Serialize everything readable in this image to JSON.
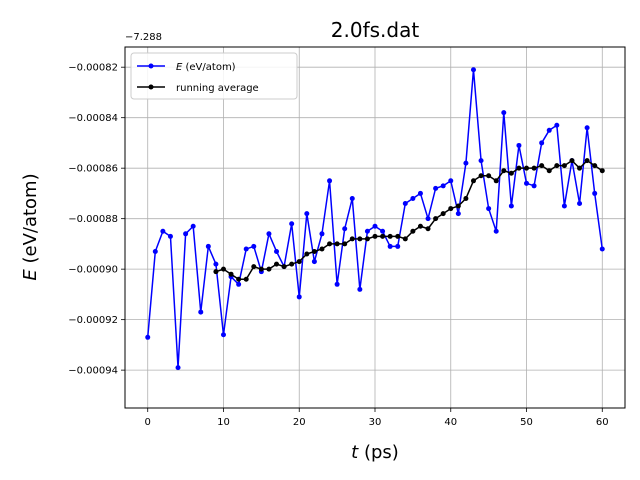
{
  "chart_data": {
    "type": "line",
    "title": "2.0fs.dat",
    "xlabel_var": "t",
    "xlabel_unit": " (ps)",
    "ylabel_var": "E",
    "ylabel_unit": " (eV/atom)",
    "y_offset_label": "−7.288",
    "y_offset": -7.288,
    "xlim": [
      -3,
      63
    ],
    "ylim": [
      -0.000955,
      -0.000812
    ],
    "x_ticks": [
      0,
      10,
      20,
      30,
      40,
      50,
      60
    ],
    "x_tick_labels": [
      "0",
      "10",
      "20",
      "30",
      "40",
      "50",
      "60"
    ],
    "y_ticks": [
      -0.00094,
      -0.00092,
      -0.0009,
      -0.00088,
      -0.00086,
      -0.00084,
      -0.00082
    ],
    "y_tick_labels": [
      "−0.00094",
      "−0.00092",
      "−0.00090",
      "−0.00088",
      "−0.00086",
      "−0.00084",
      "−0.00082"
    ],
    "grid": true,
    "legend_position": "upper-left",
    "series": [
      {
        "name": "E (eV/atom)",
        "legend_var": "E",
        "legend_unit": " (eV/atom)",
        "color": "#0000ff",
        "x": [
          0,
          1,
          2,
          3,
          4,
          5,
          6,
          7,
          8,
          9,
          10,
          11,
          12,
          13,
          14,
          15,
          16,
          17,
          18,
          19,
          20,
          21,
          22,
          23,
          24,
          25,
          26,
          27,
          28,
          29,
          30,
          31,
          32,
          33,
          34,
          35,
          36,
          37,
          38,
          39,
          40,
          41,
          42,
          43,
          44,
          45,
          46,
          47,
          48,
          49,
          50,
          51,
          52,
          53,
          54,
          55,
          56,
          57,
          58,
          59,
          60
        ],
        "y": [
          -0.000927,
          -0.000893,
          -0.000885,
          -0.000887,
          -0.000939,
          -0.000886,
          -0.000883,
          -0.000917,
          -0.000891,
          -0.000898,
          -0.000926,
          -0.000903,
          -0.000906,
          -0.000892,
          -0.000891,
          -0.000901,
          -0.000886,
          -0.000893,
          -0.000899,
          -0.000882,
          -0.000911,
          -0.000878,
          -0.000897,
          -0.000886,
          -0.000865,
          -0.000906,
          -0.000884,
          -0.000872,
          -0.000908,
          -0.000885,
          -0.000883,
          -0.000885,
          -0.000891,
          -0.000891,
          -0.000874,
          -0.000872,
          -0.00087,
          -0.00088,
          -0.000868,
          -0.000867,
          -0.000865,
          -0.000878,
          -0.000858,
          -0.000821,
          -0.000857,
          -0.000876,
          -0.000885,
          -0.000838,
          -0.000875,
          -0.000851,
          -0.000866,
          -0.000867,
          -0.00085,
          -0.000845,
          -0.000843,
          -0.000875,
          -0.000857,
          -0.000874,
          -0.000844,
          -0.00087,
          -0.000892
        ]
      },
      {
        "name": "running average",
        "legend_label": "running average",
        "color": "#000000",
        "x": [
          9,
          10,
          11,
          12,
          13,
          14,
          15,
          16,
          17,
          18,
          19,
          20,
          21,
          22,
          23,
          24,
          25,
          26,
          27,
          28,
          29,
          30,
          31,
          32,
          33,
          34,
          35,
          36,
          37,
          38,
          39,
          40,
          41,
          42,
          43,
          44,
          45,
          46,
          47,
          48,
          49,
          50,
          51,
          52,
          53,
          54,
          55,
          56,
          57,
          58,
          59,
          60
        ],
        "y": [
          -0.000901,
          -0.0009,
          -0.000902,
          -0.000904,
          -0.000904,
          -0.000899,
          -0.0009,
          -0.0009,
          -0.000898,
          -0.000899,
          -0.000898,
          -0.000897,
          -0.000894,
          -0.000893,
          -0.000892,
          -0.00089,
          -0.00089,
          -0.00089,
          -0.000888,
          -0.000888,
          -0.000888,
          -0.000887,
          -0.000887,
          -0.000887,
          -0.000887,
          -0.000888,
          -0.000885,
          -0.000883,
          -0.000884,
          -0.00088,
          -0.000878,
          -0.000876,
          -0.000875,
          -0.000872,
          -0.000865,
          -0.000863,
          -0.000863,
          -0.000865,
          -0.000861,
          -0.000862,
          -0.00086,
          -0.00086,
          -0.00086,
          -0.000859,
          -0.000861,
          -0.000859,
          -0.000859,
          -0.000857,
          -0.00086,
          -0.000857,
          -0.000859,
          -0.000861
        ]
      }
    ]
  }
}
